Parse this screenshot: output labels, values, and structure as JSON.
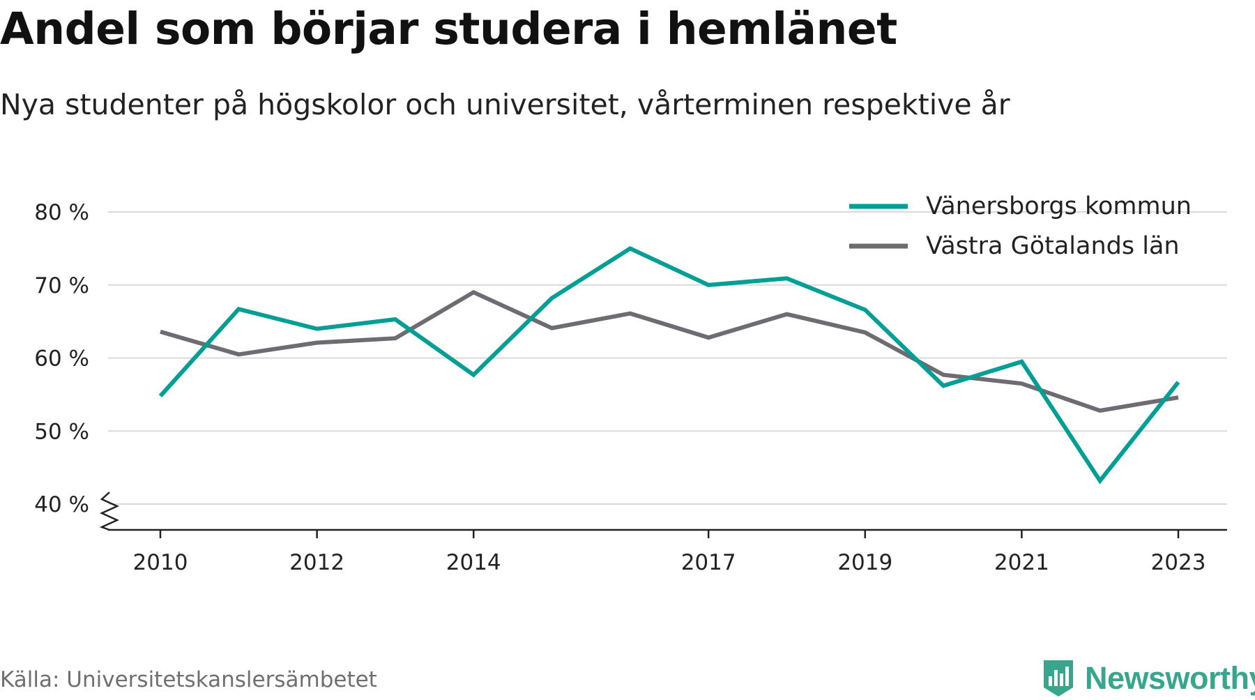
{
  "title": "Andel som börjar studera i hemlänet",
  "subtitle": "Nya studenter på högskolor och universitet, vårterminen respektive år",
  "source": "Källa: Universitetskanslersämbetet",
  "brand": {
    "name": "Newsworthy",
    "logo_icon": "newsworthy-bar-chart-logo-icon",
    "color": "#37a68d"
  },
  "chart_data": {
    "type": "line",
    "x": [
      2010,
      2011,
      2012,
      2013,
      2014,
      2015,
      2016,
      2017,
      2018,
      2019,
      2020,
      2021,
      2022,
      2023
    ],
    "xticks": [
      "2010",
      "2012",
      "2014",
      "2017",
      "2019",
      "2021",
      "2023"
    ],
    "yticks": [
      "80 %",
      "70 %",
      "60 %",
      "50 %",
      "40 %"
    ],
    "ylim": [
      40,
      80
    ],
    "ytick_values": [
      80,
      70,
      60,
      50,
      40
    ],
    "y_axis_break": true,
    "grid": "horizontal",
    "legend_position": "top-right",
    "series": [
      {
        "name": "Vänersborgs kommun",
        "color": "#009e94",
        "values": [
          54.8,
          66.7,
          64.0,
          65.3,
          57.7,
          68.2,
          75.0,
          70.0,
          70.9,
          66.6,
          56.2,
          59.5,
          43.2,
          56.7
        ]
      },
      {
        "name": "Västra Götalands län",
        "color": "#6e6c72",
        "values": [
          63.6,
          60.5,
          62.1,
          62.7,
          69.0,
          64.1,
          66.1,
          62.8,
          66.0,
          63.5,
          57.7,
          56.5,
          52.8,
          54.6
        ]
      }
    ],
    "axis_color": "#222222",
    "grid_color": "#d9d9d9"
  }
}
